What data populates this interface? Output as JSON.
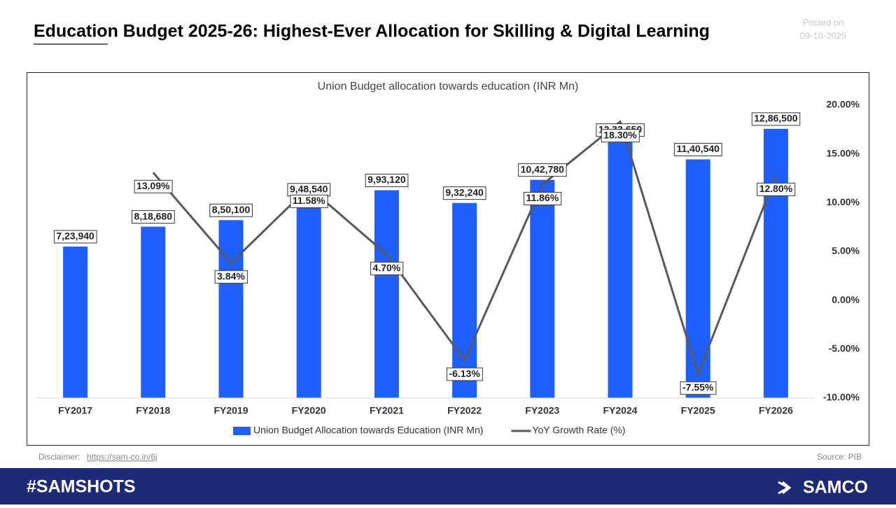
{
  "header": {
    "title": "Education Budget 2025-26: Highest-Ever Allocation for Skilling & Digital Learning",
    "posted_label": "Posted on",
    "posted_date": "09-10-2025"
  },
  "chart_data": {
    "type": "combo",
    "title": "Union Budget allocation towards education (INR Mn)",
    "categories": [
      "FY2017",
      "FY2018",
      "FY2019",
      "FY2020",
      "FY2021",
      "FY2022",
      "FY2023",
      "FY2024",
      "FY2025",
      "FY2026"
    ],
    "ylim": [
      0,
      1400000
    ],
    "y2lim": [
      -10,
      20
    ],
    "y2ticks": [
      {
        "value": 20,
        "label": "20.00%"
      },
      {
        "value": 15,
        "label": "15.00%"
      },
      {
        "value": 10,
        "label": "10.00%"
      },
      {
        "value": 5,
        "label": "5.00%"
      },
      {
        "value": 0,
        "label": "0.00%"
      },
      {
        "value": -5,
        "label": "-5.00%"
      },
      {
        "value": -10,
        "label": "-10.00%"
      }
    ],
    "legend": "bottom",
    "series": [
      {
        "name": "Union Budget Allocation towards Education (INR Mn)",
        "type": "bar",
        "color": "#1f5eff",
        "values": [
          723940,
          818680,
          850100,
          948540,
          993120,
          932240,
          1042780,
          1233650,
          1140540,
          1286500
        ],
        "value_labels": [
          "7,23,940",
          "8,18,680",
          "8,50,100",
          "9,48,540",
          "9,93,120",
          "9,32,240",
          "10,42,780",
          "12,33,650",
          "11,40,540",
          "12,86,500"
        ]
      },
      {
        "name": "YoY Growth Rate (%)",
        "type": "line",
        "color": "#595959",
        "axis": "y2",
        "values": [
          null,
          13.09,
          3.84,
          11.58,
          4.7,
          -6.13,
          11.86,
          18.3,
          -7.55,
          12.8
        ],
        "value_labels": [
          null,
          "13.09%",
          "3.84%",
          "11.58%",
          "4.70%",
          "-6.13%",
          "11.86%",
          "18.30%",
          "-7.55%",
          "12.80%"
        ]
      }
    ]
  },
  "footer": {
    "disclaimer_label": "Disclaimer:",
    "disclaimer_link": "https://sam-co.in/6j",
    "source": "Source: PIB",
    "hashtag": "#SAMSHOTS",
    "brand": "SAMCO"
  }
}
